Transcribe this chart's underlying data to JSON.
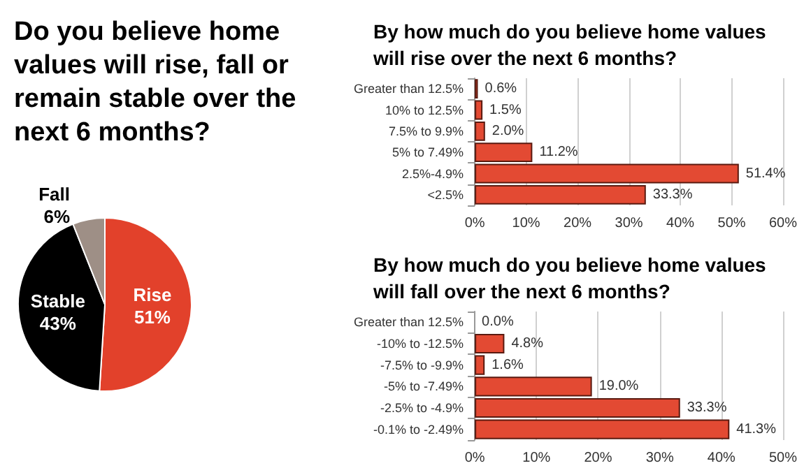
{
  "chart_data": [
    {
      "type": "pie",
      "title": "Do you believe home values will rise, fall or remain stable over the next 6 months?",
      "categories": [
        "Rise",
        "Stable",
        "Fall"
      ],
      "values": [
        51,
        43,
        6
      ],
      "colors": [
        "#e2412b",
        "#000000",
        "#9e8f86"
      ],
      "value_labels": [
        "51%",
        "43%",
        "6%"
      ],
      "legend": false
    },
    {
      "type": "bar",
      "orientation": "horizontal",
      "title": "By how much do you believe home values will rise over the next 6 months?",
      "categories": [
        "Greater than 12.5%",
        "10% to 12.5%",
        "7.5% to 9.9%",
        "5% to 7.49%",
        "2.5%-4.9%",
        "<2.5%"
      ],
      "values": [
        0.6,
        1.5,
        2.0,
        11.2,
        51.4,
        33.3
      ],
      "value_labels": [
        "0.6%",
        "1.5%",
        "2.0%",
        "11.2%",
        "51.4%",
        "33.3%"
      ],
      "color": "#e34a33",
      "xlim": [
        0,
        60
      ],
      "xticks": [
        {
          "value": 0,
          "label": "0%"
        },
        {
          "value": 10,
          "label": "10%"
        },
        {
          "value": 20,
          "label": "20%"
        },
        {
          "value": 30,
          "label": "30%"
        },
        {
          "value": 40,
          "label": "40%"
        },
        {
          "value": 50,
          "label": "50%"
        },
        {
          "value": 60,
          "label": "60%"
        }
      ],
      "grid": "x",
      "legend": false
    },
    {
      "type": "bar",
      "orientation": "horizontal",
      "title": "By how much do you believe home values will fall over the next 6 months?",
      "categories": [
        "Greater than 12.5%",
        "-10% to -12.5%",
        "-7.5% to -9.9%",
        "-5% to -7.49%",
        "-2.5% to -4.9%",
        "-0.1% to -2.49%"
      ],
      "values": [
        0.0,
        4.8,
        1.6,
        19.0,
        33.3,
        41.3
      ],
      "value_labels": [
        "0.0%",
        "4.8%",
        "1.6%",
        "19.0%",
        "33.3%",
        "41.3%"
      ],
      "color": "#e34a33",
      "xlim": [
        0,
        50
      ],
      "xticks": [
        {
          "value": 0,
          "label": "0%"
        },
        {
          "value": 10,
          "label": "10%"
        },
        {
          "value": 20,
          "label": "20%"
        },
        {
          "value": 30,
          "label": "30%"
        },
        {
          "value": 40,
          "label": "40%"
        },
        {
          "value": 50,
          "label": "50%"
        }
      ],
      "grid": "x",
      "legend": false
    }
  ]
}
